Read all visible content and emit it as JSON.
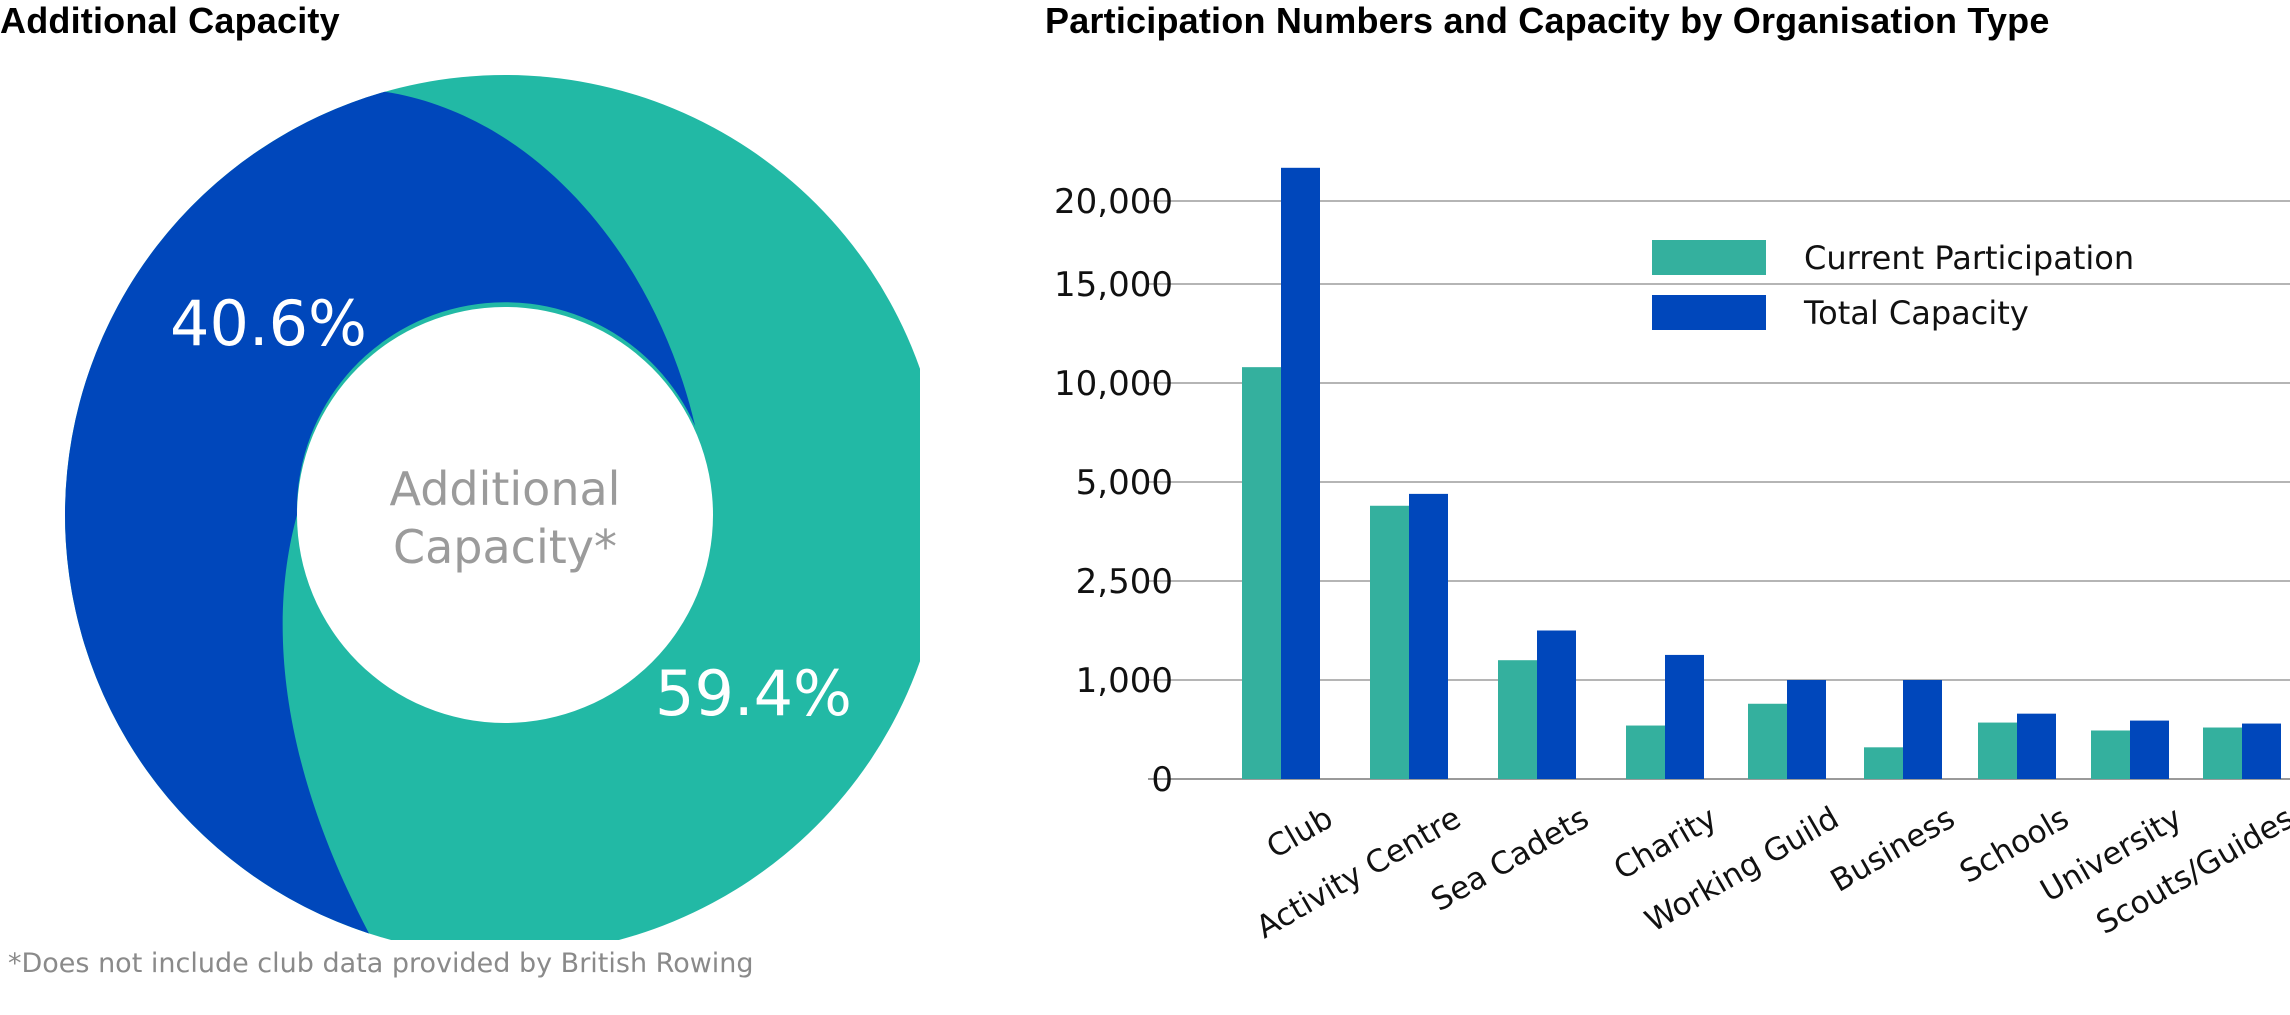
{
  "chart_data": [
    {
      "type": "pie",
      "title": "Additional Capacity",
      "center_label": [
        "Additional",
        "Capacity*"
      ],
      "slices": [
        {
          "label": "40.6%",
          "value": 40.6,
          "color": "#0047BB"
        },
        {
          "label": "59.4%",
          "value": 59.4,
          "color": "#22B9A5"
        }
      ],
      "footnote": "*Does not include club data provided by British Rowing"
    },
    {
      "type": "bar",
      "title": "Participation Numbers and Capacity by Organisation Type",
      "categories": [
        "Club",
        "Activity Centre",
        "Sea Cadets",
        "Charity",
        "Working Guild",
        "Business",
        "Schools",
        "University",
        "Scouts/Guides"
      ],
      "series": [
        {
          "name": "Current Participation",
          "color": "#34B09E",
          "values": [
            10800,
            4400,
            1300,
            540,
            760,
            320,
            570,
            490,
            520
          ]
        },
        {
          "name": "Total Capacity",
          "color": "#0047BB",
          "values": [
            22000,
            4700,
            1750,
            1380,
            1000,
            1000,
            660,
            590,
            560
          ]
        }
      ],
      "yticks": [
        0,
        1000,
        2500,
        5000,
        10000,
        15000,
        20000
      ],
      "ytick_labels": [
        "0",
        "1,000",
        "2,500",
        "5,000",
        "10,000",
        "15,000",
        "20,000"
      ],
      "y_scale": "piecewise",
      "grid": true,
      "legend": "top-right"
    }
  ]
}
